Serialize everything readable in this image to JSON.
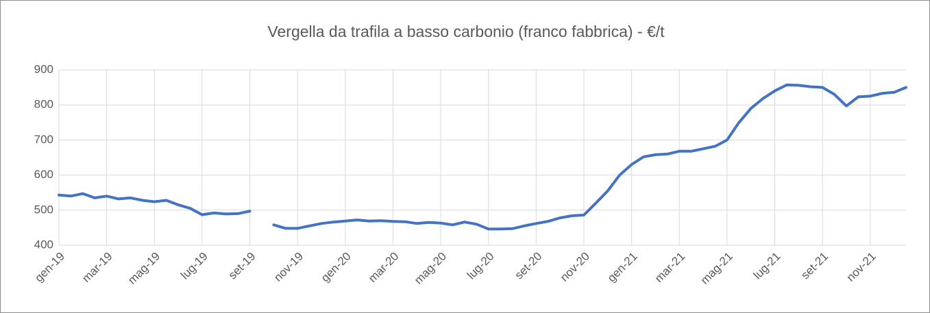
{
  "chart_data": {
    "type": "line",
    "title": "Vergella da trafila a basso carbonio (franco fabbrica) - €/t",
    "categories": [
      "gen-19",
      null,
      null,
      null,
      "mar-19",
      null,
      null,
      null,
      "mag-19",
      null,
      null,
      null,
      "lug-19",
      null,
      null,
      null,
      "set-19",
      null,
      null,
      null,
      "nov-19",
      null,
      null,
      null,
      "gen-20",
      null,
      null,
      null,
      "mar-20",
      null,
      null,
      null,
      "mag-20",
      null,
      null,
      null,
      "lug-20",
      null,
      null,
      null,
      "set-20",
      null,
      null,
      null,
      "nov-20",
      null,
      null,
      null,
      "gen-21",
      null,
      null,
      null,
      "mar-21",
      null,
      null,
      null,
      "mag-21",
      null,
      null,
      null,
      "lug-21",
      null,
      null,
      null,
      "set-21",
      null,
      null,
      null,
      "nov-21",
      null,
      null,
      null
    ],
    "series": [
      {
        "name": "Vergella",
        "color": "#4472c4",
        "values": [
          543,
          540,
          547,
          535,
          540,
          532,
          535,
          528,
          524,
          528,
          515,
          505,
          487,
          492,
          489,
          490,
          497,
          null,
          458,
          448,
          448,
          455,
          462,
          466,
          469,
          472,
          469,
          470,
          468,
          467,
          462,
          465,
          463,
          458,
          466,
          460,
          446,
          446,
          447,
          455,
          462,
          468,
          478,
          484,
          486,
          520,
          555,
          600,
          630,
          652,
          658,
          660,
          668,
          668,
          675,
          682,
          700,
          750,
          790,
          818,
          840,
          857,
          856,
          852,
          850,
          830,
          797,
          823,
          825,
          833,
          836,
          850
        ]
      }
    ],
    "ylim": [
      400,
      900
    ],
    "yticks": [
      400,
      500,
      600,
      700,
      800,
      900
    ],
    "grid": true
  }
}
